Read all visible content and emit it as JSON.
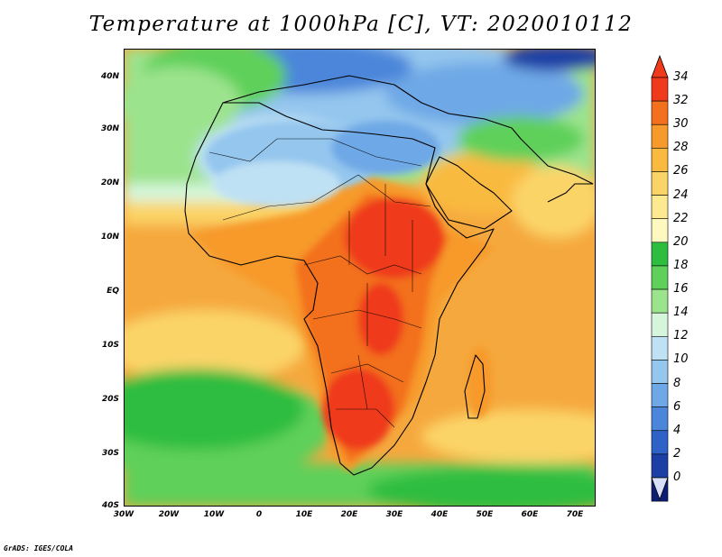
{
  "title": "Temperature at 1000hPa [C], VT: 2020010112",
  "credit": "GrADS: IGES/COLA",
  "map": {
    "type": "filled-contour",
    "variable": "Temperature",
    "level": "1000hPa",
    "units": "C",
    "valid_time": "2020010112",
    "region": "Africa"
  },
  "axes": {
    "lat_labels": [
      "40N",
      "30N",
      "20N",
      "10N",
      "EQ",
      "10S",
      "20S",
      "30S",
      "40S"
    ],
    "lon_labels": [
      "30W",
      "20W",
      "10W",
      "0",
      "10E",
      "20E",
      "30E",
      "40E",
      "50E",
      "60E",
      "70E"
    ]
  },
  "colorbar": {
    "labels": [
      "34",
      "32",
      "30",
      "28",
      "26",
      "24",
      "22",
      "20",
      "18",
      "16",
      "14",
      "12",
      "10",
      "8",
      "6",
      "4",
      "2",
      "0"
    ],
    "colors": [
      "#ef3a1c",
      "#f3701f",
      "#f79a2c",
      "#f9ba3f",
      "#fbd468",
      "#fde98f",
      "#fef9c0",
      "#2ebd3f",
      "#5fd05a",
      "#9ce38d",
      "#d6f6dc",
      "#bfe1f4",
      "#94c6ee",
      "#6ea8e6",
      "#4b86da",
      "#2f62c6",
      "#1c3fa5",
      "#0d1c75",
      "#06104f"
    ]
  }
}
